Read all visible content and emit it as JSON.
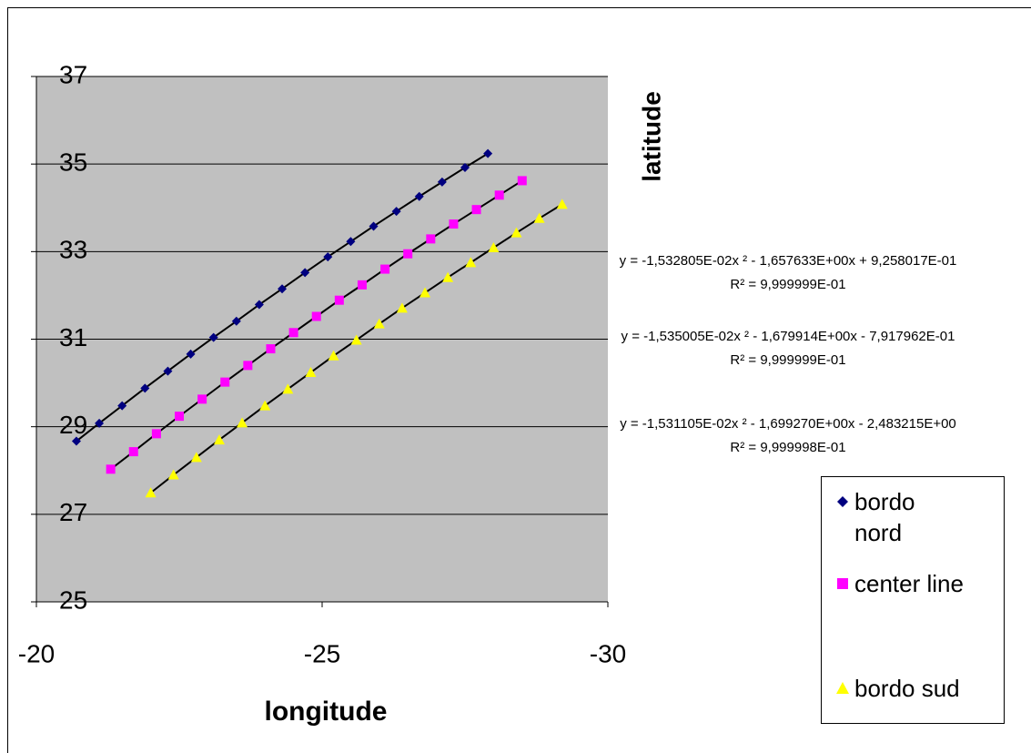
{
  "chart_data": {
    "type": "scatter",
    "x_label": "longitude",
    "y_label": "latitude",
    "xlim": [
      -20,
      -30
    ],
    "xticks": [
      -20,
      -25,
      -30
    ],
    "ylim": [
      25,
      37
    ],
    "yticks": [
      25,
      27,
      29,
      31,
      33,
      35,
      37
    ],
    "grid": true,
    "legend": "right",
    "plot_background": "#c0c0c0",
    "series": [
      {
        "name": "bordo nord",
        "color": "#000080",
        "marker": "diamond",
        "equation": "y = -1,532805E-02x ² - 1,657633E+00x + 9,258017E-01",
        "r_squared": "R² = 9,999999E-01",
        "x": [
          -20.7,
          -21.1,
          -21.5,
          -21.9,
          -22.3,
          -22.7,
          -23.1,
          -23.5,
          -23.9,
          -24.3,
          -24.7,
          -25.1,
          -25.5,
          -25.9,
          -26.3,
          -26.7,
          -27.1,
          -27.5,
          -27.9
        ],
        "values": [
          28.67,
          29.08,
          29.48,
          29.88,
          30.27,
          30.66,
          31.04,
          31.41,
          31.79,
          32.15,
          32.52,
          32.88,
          33.23,
          33.58,
          33.92,
          34.26,
          34.59,
          34.92,
          35.24
        ]
      },
      {
        "name": "center line",
        "color": "#ff00ff",
        "marker": "square",
        "equation": "y = -1,535005E-02x ² - 1,679914E+00x - 7,917962E-01",
        "r_squared": "R² = 9,999999E-01",
        "x": [
          -21.3,
          -21.7,
          -22.1,
          -22.5,
          -22.9,
          -23.3,
          -23.7,
          -24.1,
          -24.5,
          -24.9,
          -25.3,
          -25.7,
          -26.1,
          -26.5,
          -26.9,
          -27.3,
          -27.7,
          -28.1,
          -28.5
        ],
        "values": [
          28.03,
          28.43,
          28.84,
          29.24,
          29.63,
          30.02,
          30.4,
          30.78,
          31.15,
          31.52,
          31.89,
          32.24,
          32.6,
          32.95,
          33.29,
          33.63,
          33.96,
          34.29,
          34.62
        ]
      },
      {
        "name": "bordo sud",
        "color": "#ffff00",
        "marker": "triangle",
        "equation": "y = -1,531105E-02x ² - 1,699270E+00x - 2,483215E+00",
        "r_squared": "R² = 9,999998E-01",
        "x": [
          -22.0,
          -22.4,
          -22.8,
          -23.2,
          -23.6,
          -24.0,
          -24.4,
          -24.8,
          -25.2,
          -25.6,
          -26.0,
          -26.4,
          -26.8,
          -27.2,
          -27.6,
          -28.0,
          -28.4,
          -28.8,
          -29.2
        ],
        "values": [
          27.49,
          27.9,
          28.3,
          28.7,
          29.09,
          29.48,
          29.86,
          30.24,
          30.62,
          30.98,
          31.35,
          31.71,
          32.06,
          32.41,
          32.75,
          33.09,
          33.43,
          33.76,
          34.08
        ]
      }
    ]
  }
}
